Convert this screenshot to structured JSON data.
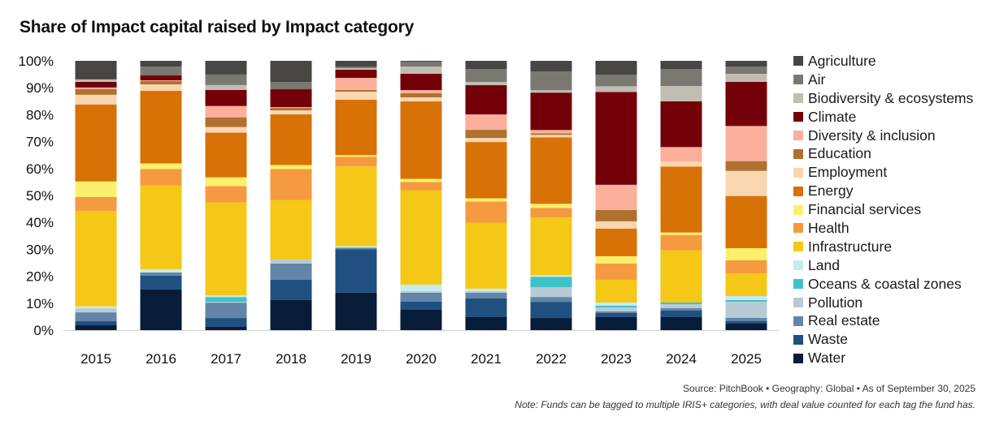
{
  "chart_data": {
    "type": "bar",
    "stacked": true,
    "title": "Share of Impact capital raised by Impact category",
    "xlabel": "",
    "ylabel": "",
    "ylim": [
      0,
      100
    ],
    "y_ticks": [
      "0%",
      "10%",
      "20%",
      "30%",
      "40%",
      "50%",
      "60%",
      "70%",
      "80%",
      "90%",
      "100%"
    ],
    "categories": [
      "2015",
      "2016",
      "2017",
      "2018",
      "2019",
      "2020",
      "2021",
      "2022",
      "2023",
      "2024",
      "2025"
    ],
    "legend_position": "right",
    "series": [
      {
        "name": "Water",
        "color": "#071c38",
        "values": [
          1.8,
          15.0,
          1.2,
          11.1,
          13.9,
          7.5,
          4.8,
          4.5,
          4.8,
          4.8,
          2.4
        ]
      },
      {
        "name": "Waste",
        "color": "#1f5080",
        "values": [
          1.5,
          5.1,
          3.3,
          7.5,
          16.0,
          3.0,
          6.9,
          6.0,
          1.5,
          2.4,
          0.9
        ]
      },
      {
        "name": "Real estate",
        "color": "#6285a8",
        "values": [
          3.3,
          1.2,
          5.7,
          6.0,
          0.6,
          3.3,
          2.1,
          1.8,
          0.6,
          0.9,
          1.2
        ]
      },
      {
        "name": "Pollution",
        "color": "#b9cad7",
        "values": [
          1.5,
          0,
          0.3,
          1.5,
          0,
          0.6,
          0.6,
          3.6,
          1.5,
          1.5,
          6.0
        ]
      },
      {
        "name": "Oceans & coastal zones",
        "color": "#3fc1c9",
        "values": [
          0,
          0,
          1.8,
          0,
          0,
          0,
          0,
          3.9,
          0.6,
          0.6,
          0.6
        ]
      },
      {
        "name": "Land",
        "color": "#c5eced",
        "values": [
          0.7,
          1.2,
          0.6,
          0,
          0.6,
          2.4,
          0.9,
          0.6,
          1.2,
          0,
          1.5
        ]
      },
      {
        "name": "Infrastructure",
        "color": "#f5c716",
        "values": [
          35.5,
          31.0,
          34.6,
          22.0,
          29.5,
          34.9,
          24.4,
          21.4,
          8.4,
          19.3,
          8.4
        ]
      },
      {
        "name": "Health",
        "color": "#f59a40",
        "values": [
          5.1,
          6.0,
          6.0,
          11.4,
          3.6,
          3.0,
          7.8,
          3.6,
          6.0,
          5.7,
          4.8
        ]
      },
      {
        "name": "Financial services",
        "color": "#fbf06b",
        "values": [
          5.8,
          2.1,
          3.3,
          1.5,
          0.6,
          1.2,
          1.2,
          1.5,
          2.7,
          0.9,
          4.5
        ]
      },
      {
        "name": "Energy",
        "color": "#d87106",
        "values": [
          28.6,
          26.8,
          16.6,
          18.7,
          20.5,
          28.6,
          20.8,
          24.7,
          10.2,
          24.4,
          19.3
        ]
      },
      {
        "name": "Employment",
        "color": "#fad6b0",
        "values": [
          3.6,
          2.4,
          2.1,
          1.5,
          3.0,
          1.5,
          1.5,
          0.9,
          2.7,
          1.8,
          9.3
        ]
      },
      {
        "name": "Education",
        "color": "#b0702f",
        "values": [
          2.1,
          1.2,
          3.6,
          0.9,
          0.6,
          1.5,
          3.0,
          0.6,
          4.2,
          0,
          3.6
        ]
      },
      {
        "name": "Diversity & inclusion",
        "color": "#fcaf9a",
        "values": [
          0.6,
          0.3,
          4.2,
          0.3,
          4.5,
          1.2,
          5.7,
          1.2,
          9.3,
          5.4,
          13.0
        ]
      },
      {
        "name": "Climate",
        "color": "#730009",
        "values": [
          2.1,
          1.8,
          6.0,
          6.6,
          3.0,
          6.0,
          10.8,
          13.9,
          34.3,
          16.9,
          16.3
        ]
      },
      {
        "name": "Biodiversity & ecosystems",
        "color": "#c1bdb3",
        "values": [
          0.9,
          0,
          1.8,
          0,
          0.6,
          2.7,
          1.2,
          0.9,
          2.1,
          5.7,
          3.0
        ]
      },
      {
        "name": "Air",
        "color": "#7a7870",
        "values": [
          0,
          3.3,
          3.9,
          2.7,
          0.6,
          1.8,
          4.8,
          6.9,
          4.2,
          6.3,
          2.7
        ]
      },
      {
        "name": "Agriculture",
        "color": "#474643",
        "values": [
          6.9,
          2.1,
          5.1,
          7.8,
          2.1,
          0.3,
          3.0,
          4.0,
          5.2,
          3.0,
          2.1
        ]
      }
    ]
  },
  "legend_order": [
    "Agriculture",
    "Air",
    "Biodiversity & ecosystems",
    "Climate",
    "Diversity & inclusion",
    "Education",
    "Employment",
    "Energy",
    "Financial services",
    "Health",
    "Infrastructure",
    "Land",
    "Oceans & coastal zones",
    "Pollution",
    "Real estate",
    "Waste",
    "Water"
  ],
  "footer": {
    "source": "Source: PitchBook  •  Geography: Global  •  As of September 30, 2025",
    "note": "Note: Funds can be tagged to multiple IRIS+ categories, with deal value counted for each tag the fund has."
  }
}
